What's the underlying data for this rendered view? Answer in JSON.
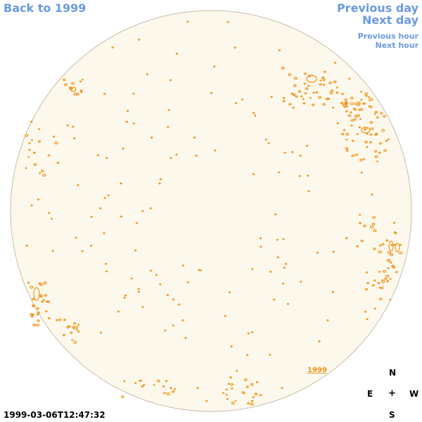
{
  "nav": {
    "back_label": "Back to 1999",
    "prev_day_label": "Previous day",
    "next_day_label": "Next day",
    "prev_hour_label": "Previous hour",
    "next_hour_label": "Next hour"
  },
  "disk": {
    "year_tag": "1999",
    "fill_color": "#fdf8ec",
    "outline_color": "#c7bfae",
    "contour_color": "#f0941a"
  },
  "compass": {
    "north": "N",
    "east": "E",
    "center": "+",
    "west": "W",
    "south": "S"
  },
  "timestamp": "1999-03-06T12:47:32"
}
